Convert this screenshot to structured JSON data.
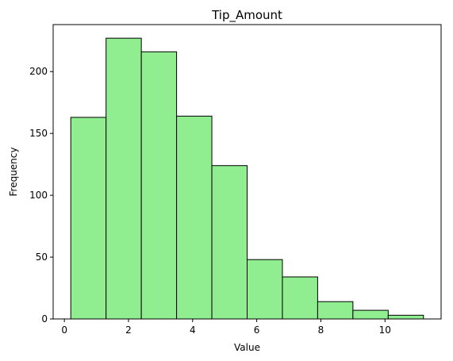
{
  "chart_data": {
    "type": "bar",
    "title": "Tip_Amount",
    "xlabel": "Value",
    "ylabel": "Frequency",
    "bins": [
      {
        "x0": 0.2,
        "x1": 1.3,
        "count": 163
      },
      {
        "x0": 1.3,
        "x1": 2.4,
        "count": 227
      },
      {
        "x0": 2.4,
        "x1": 3.5,
        "count": 216
      },
      {
        "x0": 3.5,
        "x1": 4.6,
        "count": 164
      },
      {
        "x0": 4.6,
        "x1": 5.7,
        "count": 124
      },
      {
        "x0": 5.7,
        "x1": 6.8,
        "count": 48
      },
      {
        "x0": 6.8,
        "x1": 7.9,
        "count": 34
      },
      {
        "x0": 7.9,
        "x1": 9.0,
        "count": 14
      },
      {
        "x0": 9.0,
        "x1": 10.1,
        "count": 7
      },
      {
        "x0": 10.1,
        "x1": 11.2,
        "count": 3
      }
    ],
    "xlim": [
      -0.35,
      11.75
    ],
    "ylim": [
      0,
      238
    ],
    "xticks": [
      0,
      2,
      4,
      6,
      8,
      10
    ],
    "yticks": [
      0,
      50,
      100,
      150,
      200
    ],
    "bar_color": "#90ee90",
    "edge_color": "#000000",
    "grid": false,
    "legend": "none"
  }
}
